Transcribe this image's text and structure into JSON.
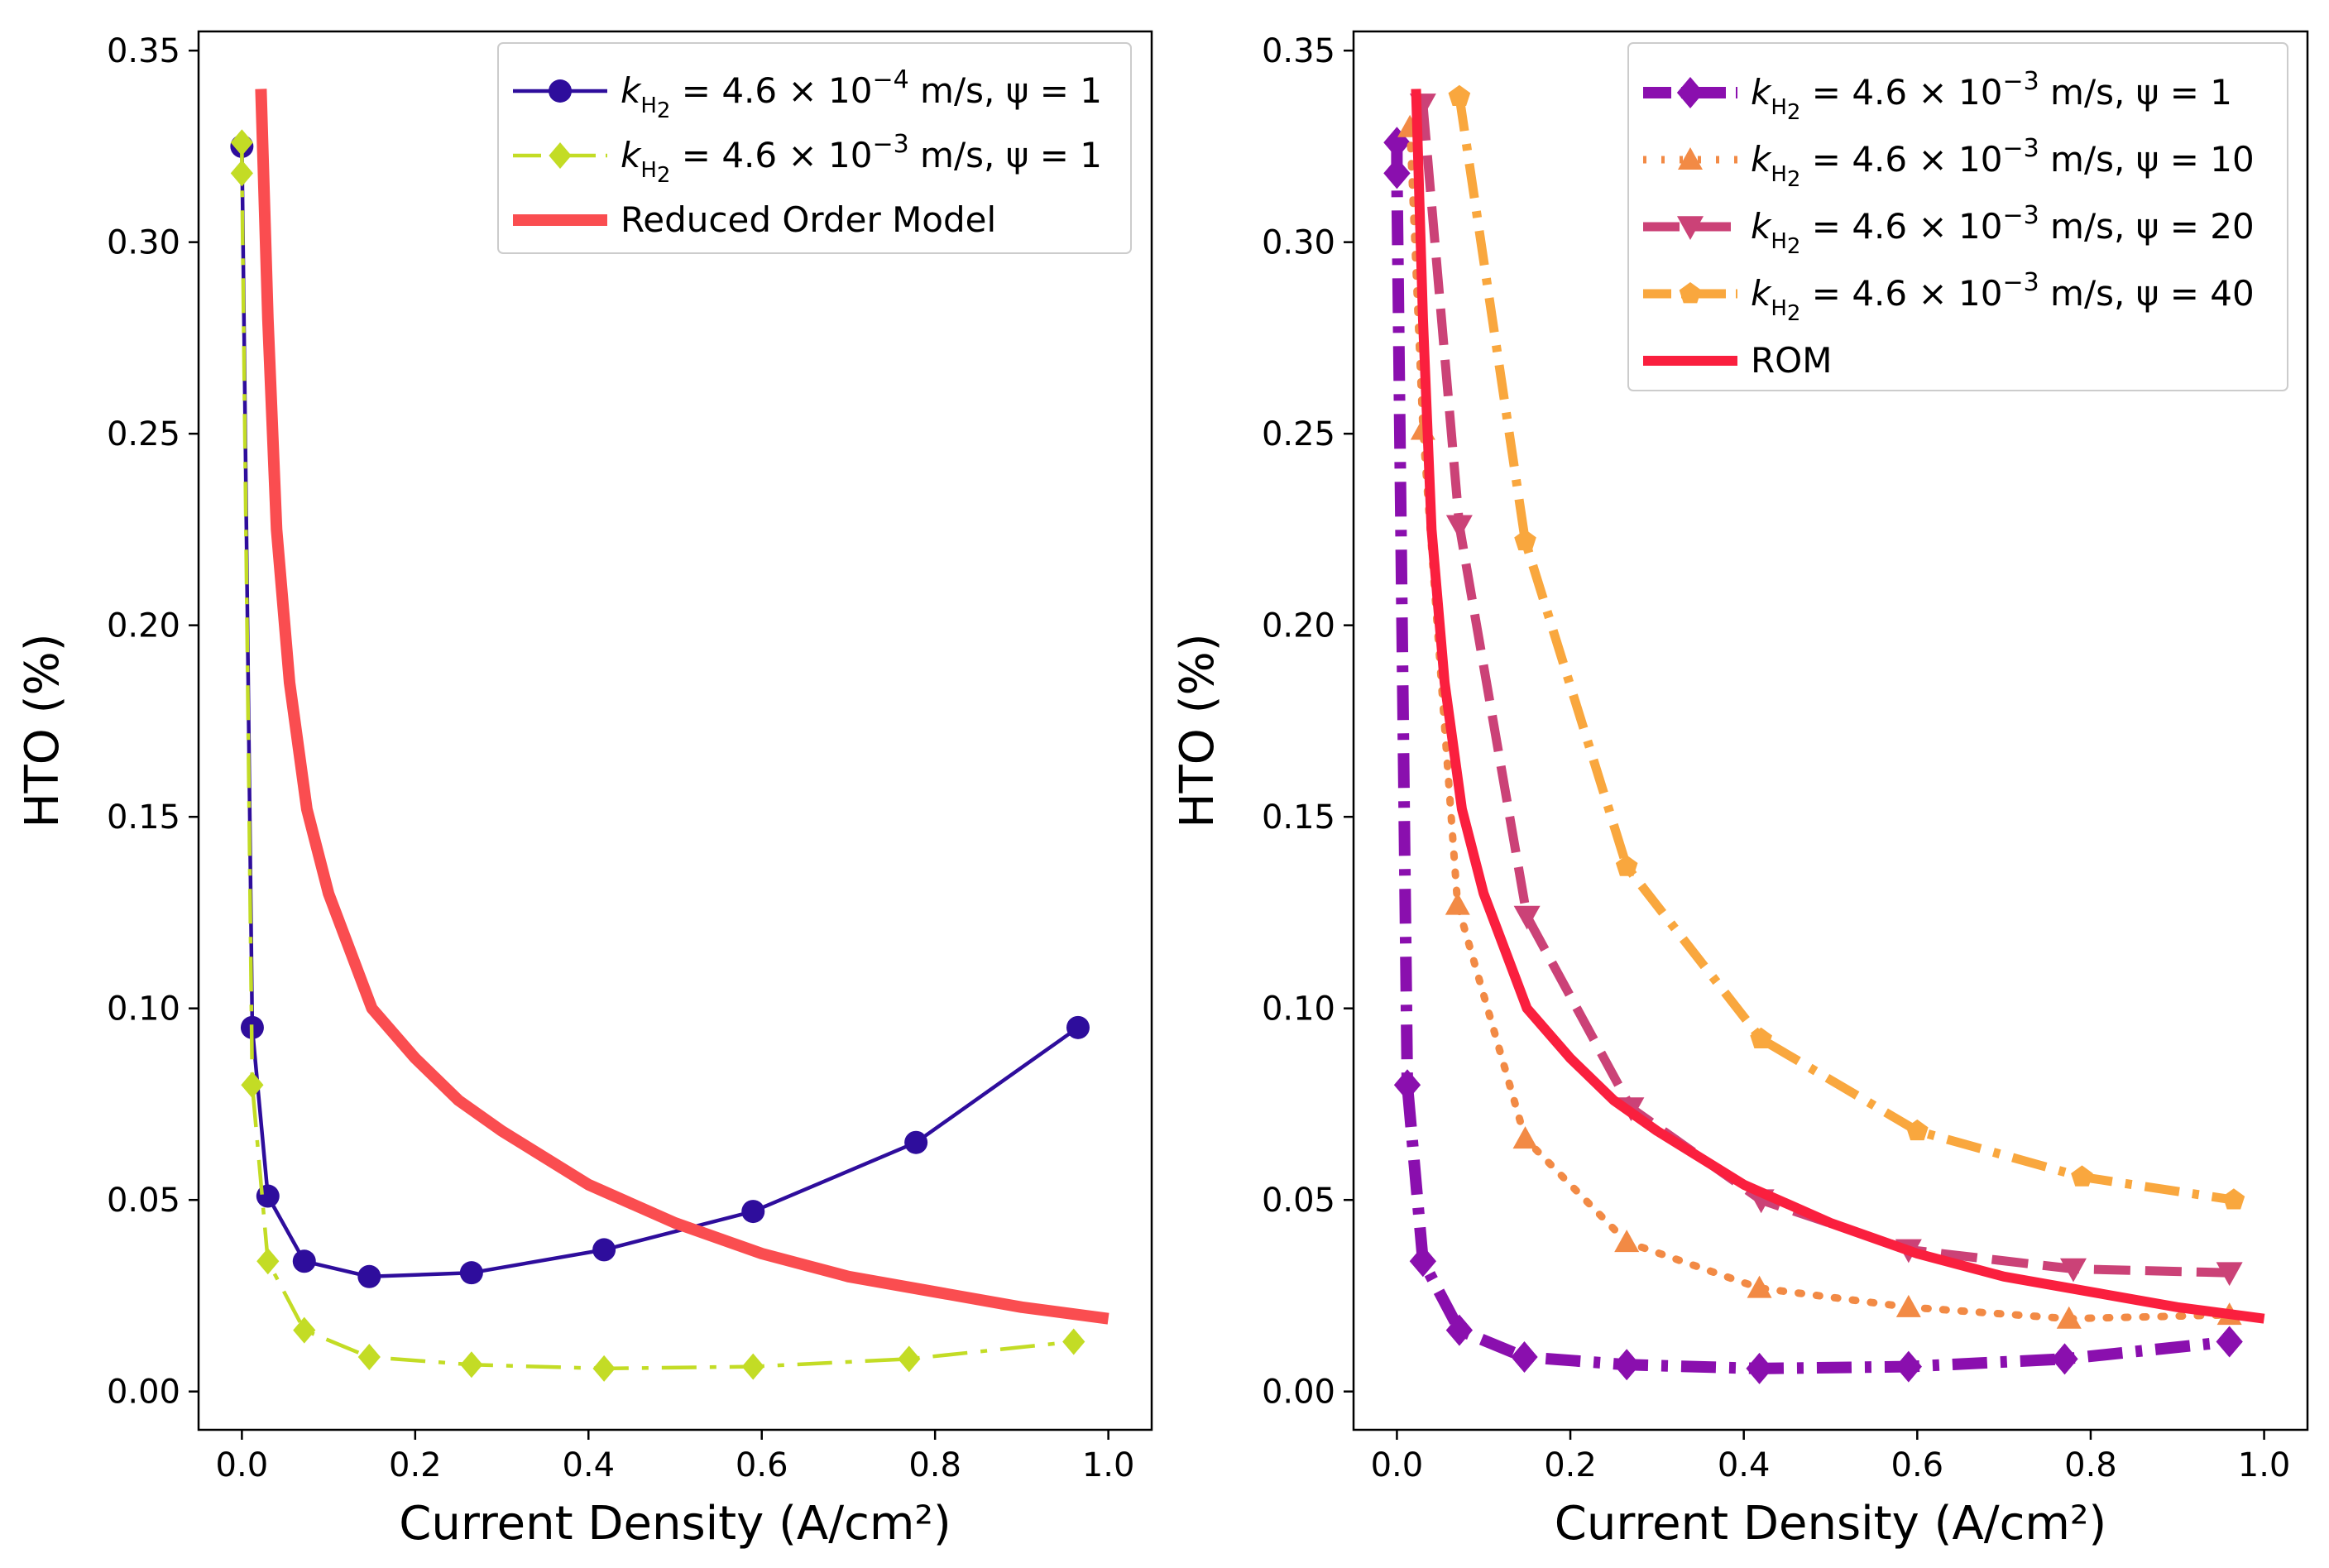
{
  "chart_data": [
    {
      "type": "line",
      "xlabel": "Current Density (A/cm²)",
      "ylabel": "HTO (%)",
      "xlim": [
        -0.05,
        1.05
      ],
      "ylim": [
        -0.01,
        0.355
      ],
      "xticks": [
        "0.0",
        "0.2",
        "0.4",
        "0.6",
        "0.8",
        "1.0"
      ],
      "yticks": [
        "0.00",
        "0.05",
        "0.10",
        "0.15",
        "0.20",
        "0.25",
        "0.30",
        "0.35"
      ],
      "legend_position": "top-right",
      "series": [
        {
          "name": "k_H2 = 4.6 × 10^-4 m/s, ψ = 1",
          "legend": {
            "k": "k",
            "sub": "H",
            "sub2": "2",
            "main": " = 4.6 × 10",
            "exp": "−4",
            "tail": " m/s, ψ = 1"
          },
          "color": "#2e0d9c",
          "marker": "circle",
          "linestyle": "solid",
          "x": [
            0.0,
            0.012,
            0.03,
            0.072,
            0.147,
            0.265,
            0.418,
            0.59,
            0.778,
            0.965
          ],
          "y": [
            0.325,
            0.095,
            0.051,
            0.034,
            0.03,
            0.031,
            0.037,
            0.047,
            0.065,
            0.095
          ]
        },
        {
          "name": "k_H2 = 4.6 × 10^-3 m/s, ψ = 1",
          "legend": {
            "k": "k",
            "sub": "H",
            "sub2": "2",
            "main": " = 4.6 × 10",
            "exp": "−3",
            "tail": " m/s, ψ = 1"
          },
          "color": "#c3dc25",
          "marker": "diamond",
          "linestyle": "dashdot",
          "x": [
            0.0,
            0.0,
            0.012,
            0.03,
            0.072,
            0.147,
            0.265,
            0.418,
            0.59,
            0.77,
            0.96
          ],
          "y": [
            0.326,
            0.318,
            0.08,
            0.034,
            0.016,
            0.009,
            0.007,
            0.006,
            0.0065,
            0.0085,
            0.013
          ]
        },
        {
          "name": "Reduced Order Model",
          "legend": {
            "main": "Reduced Order Model"
          },
          "color": "#fa4d50",
          "marker": "none",
          "linestyle": "solid",
          "x": [
            0.022,
            0.03,
            0.04,
            0.055,
            0.075,
            0.1,
            0.15,
            0.2,
            0.25,
            0.3,
            0.4,
            0.5,
            0.6,
            0.7,
            0.8,
            0.9,
            1.0
          ],
          "y": [
            0.34,
            0.28,
            0.225,
            0.185,
            0.152,
            0.13,
            0.1,
            0.087,
            0.076,
            0.068,
            0.054,
            0.044,
            0.036,
            0.03,
            0.026,
            0.022,
            0.019
          ]
        }
      ]
    },
    {
      "type": "line",
      "xlabel": "Current Density (A/cm²)",
      "ylabel": "HTO (%)",
      "xlim": [
        -0.05,
        1.05
      ],
      "ylim": [
        -0.01,
        0.355
      ],
      "xticks": [
        "0.0",
        "0.2",
        "0.4",
        "0.6",
        "0.8",
        "1.0"
      ],
      "yticks": [
        "0.00",
        "0.05",
        "0.10",
        "0.15",
        "0.20",
        "0.25",
        "0.30",
        "0.35"
      ],
      "legend_position": "top-right",
      "series": [
        {
          "name": "k_H2 = 4.6 × 10^-3 m/s, ψ = 1",
          "legend": {
            "k": "k",
            "sub": "H",
            "sub2": "2",
            "main": " = 4.6 × 10",
            "exp": "−3",
            "tail": " m/s, ψ = 1"
          },
          "color": "#8a0fae",
          "marker": "diamond",
          "linestyle": "dashdot",
          "x": [
            0.0,
            0.0,
            0.012,
            0.03,
            0.072,
            0.147,
            0.265,
            0.418,
            0.59,
            0.77,
            0.96
          ],
          "y": [
            0.326,
            0.318,
            0.08,
            0.034,
            0.016,
            0.009,
            0.007,
            0.006,
            0.0065,
            0.0085,
            0.013
          ]
        },
        {
          "name": "k_H2 = 4.6 × 10^-3 m/s, ψ = 10",
          "legend": {
            "k": "k",
            "sub": "H",
            "sub2": "2",
            "main": " = 4.6 × 10",
            "exp": "−3",
            "tail": " m/s, ψ = 10"
          },
          "color": "#f28a45",
          "marker": "triangle-up",
          "linestyle": "dotted",
          "x": [
            0.015,
            0.03,
            0.07,
            0.148,
            0.265,
            0.418,
            0.59,
            0.775,
            0.96
          ],
          "y": [
            0.33,
            0.251,
            0.127,
            0.066,
            0.039,
            0.027,
            0.022,
            0.019,
            0.02
          ]
        },
        {
          "name": "k_H2 = 4.6 × 10^-3 m/s, ψ = 20",
          "legend": {
            "k": "k",
            "sub": "H",
            "sub2": "2",
            "main": " = 4.6 × 10",
            "exp": "−3",
            "tail": " m/s, ψ = 20"
          },
          "color": "#cb4277",
          "marker": "triangle-down",
          "linestyle": "dashed",
          "x": [
            0.03,
            0.072,
            0.15,
            0.27,
            0.42,
            0.59,
            0.78,
            0.96
          ],
          "y": [
            0.336,
            0.226,
            0.124,
            0.074,
            0.05,
            0.037,
            0.032,
            0.031
          ]
        },
        {
          "name": "k_H2 = 4.6 × 10^-3 m/s, ψ = 40",
          "legend": {
            "k": "k",
            "sub": "H",
            "sub2": "2",
            "main": " = 4.6 × 10",
            "exp": "−3",
            "tail": " m/s, ψ = 40"
          },
          "color": "#f9a73e",
          "marker": "pentagon",
          "linestyle": "dashdot",
          "x": [
            0.072,
            0.148,
            0.265,
            0.42,
            0.6,
            0.79,
            0.965
          ],
          "y": [
            0.338,
            0.222,
            0.137,
            0.092,
            0.068,
            0.056,
            0.05
          ]
        },
        {
          "name": "ROM",
          "legend": {
            "main": "ROM"
          },
          "color": "#fa1f3e",
          "marker": "none",
          "linestyle": "solid",
          "x": [
            0.022,
            0.03,
            0.04,
            0.055,
            0.075,
            0.1,
            0.15,
            0.2,
            0.25,
            0.3,
            0.4,
            0.5,
            0.6,
            0.7,
            0.8,
            0.9,
            1.0
          ],
          "y": [
            0.34,
            0.28,
            0.225,
            0.185,
            0.152,
            0.13,
            0.1,
            0.087,
            0.076,
            0.068,
            0.054,
            0.044,
            0.036,
            0.03,
            0.026,
            0.022,
            0.019
          ]
        }
      ]
    }
  ]
}
